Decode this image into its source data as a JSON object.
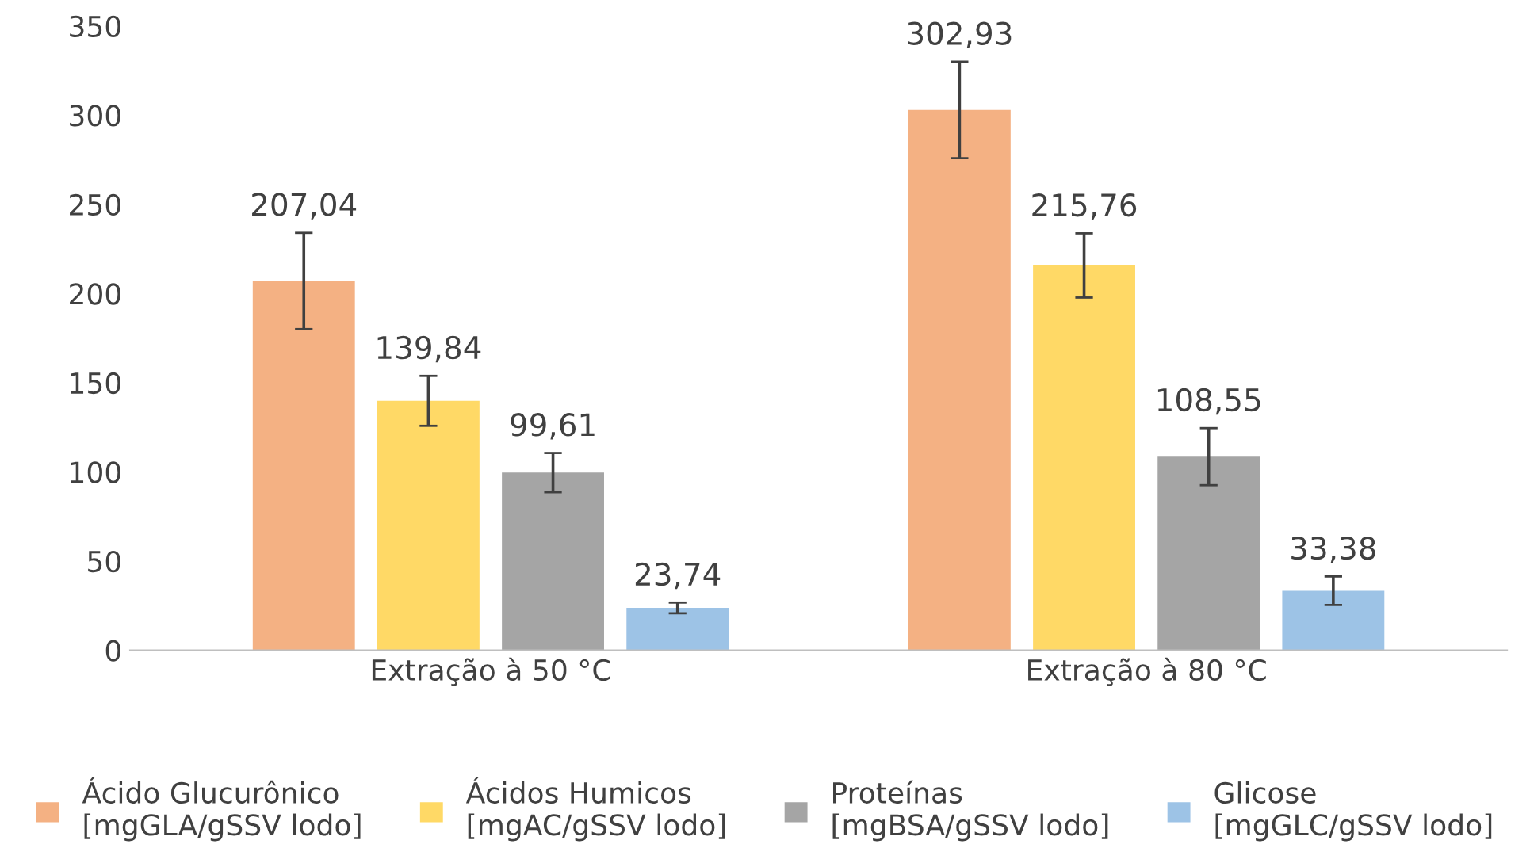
{
  "chart_data": {
    "type": "bar",
    "categories": [
      "Extração à 50 °C",
      "Extração à 80 °C"
    ],
    "series": [
      {
        "name": "Ácido Glucurônico\n[mgGLA/gSSV lodo]",
        "color": "#f4b183",
        "values": [
          207.04,
          302.93
        ],
        "errors": [
          27,
          27
        ],
        "value_labels": [
          "207,04",
          "302,93"
        ]
      },
      {
        "name": "Ácidos Humicos\n[mgAC/gSSV lodo]",
        "color": "#ffd966",
        "values": [
          139.84,
          215.76
        ],
        "errors": [
          14,
          18
        ],
        "value_labels": [
          "139,84",
          "215,76"
        ]
      },
      {
        "name": "Proteínas\n[mgBSA/gSSV lodo]",
        "color": "#a5a5a5",
        "values": [
          99.61,
          108.55
        ],
        "errors": [
          11,
          16
        ],
        "value_labels": [
          "99,61",
          "108,55"
        ]
      },
      {
        "name": "Glicose\n[mgGLC/gSSV lodo]",
        "color": "#9dc3e6",
        "values": [
          23.74,
          33.38
        ],
        "errors": [
          3,
          8
        ],
        "value_labels": [
          "23,74",
          "33,38"
        ]
      }
    ],
    "ylim": [
      0,
      350
    ],
    "yticks": [
      0,
      50,
      100,
      150,
      200,
      250,
      300,
      350
    ],
    "grid": false,
    "legend": "bottom"
  }
}
